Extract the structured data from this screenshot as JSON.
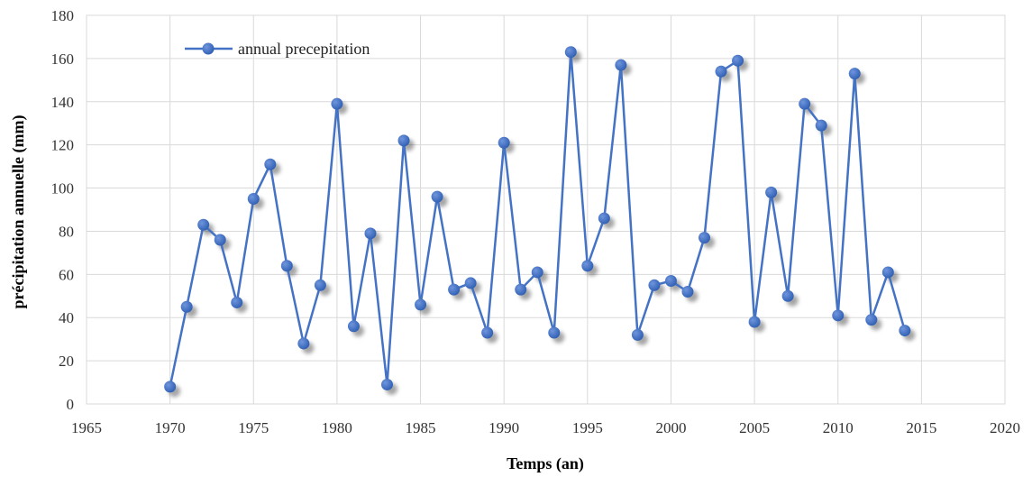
{
  "chart_data": {
    "type": "line",
    "xlabel": "Temps (an)",
    "ylabel": "précipitation annuelle  (mm)",
    "xlim": [
      1965,
      2020
    ],
    "ylim": [
      0,
      180
    ],
    "x_ticks": [
      1965,
      1970,
      1975,
      1980,
      1985,
      1990,
      1995,
      2000,
      2005,
      2010,
      2015,
      2020
    ],
    "y_ticks": [
      0,
      20,
      40,
      60,
      80,
      100,
      120,
      140,
      160,
      180
    ],
    "grid": true,
    "legend_position": "top-left",
    "series": [
      {
        "name": "annual precepitation",
        "color": "#4472c4",
        "x": [
          1970,
          1971,
          1972,
          1973,
          1974,
          1975,
          1976,
          1977,
          1978,
          1979,
          1980,
          1981,
          1982,
          1983,
          1984,
          1985,
          1986,
          1987,
          1988,
          1989,
          1990,
          1991,
          1992,
          1993,
          1994,
          1995,
          1996,
          1997,
          1998,
          1999,
          2000,
          2001,
          2002,
          2003,
          2004,
          2005,
          2006,
          2007,
          2008,
          2009,
          2010,
          2011,
          2012,
          2013,
          2014
        ],
        "y": [
          8,
          45,
          83,
          76,
          47,
          95,
          111,
          64,
          28,
          55,
          139,
          36,
          79,
          9,
          122,
          46,
          96,
          53,
          56,
          33,
          121,
          53,
          61,
          33,
          163,
          64,
          86,
          157,
          32,
          55,
          57,
          52,
          77,
          154,
          159,
          38,
          98,
          50,
          139,
          129,
          41,
          153,
          39,
          61,
          34
        ]
      }
    ]
  }
}
